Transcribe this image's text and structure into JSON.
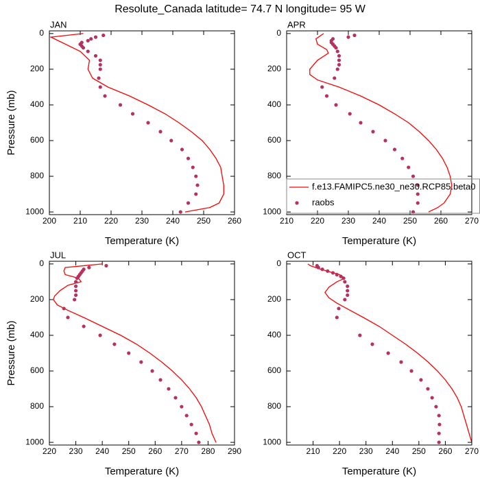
{
  "title": "Resolute_Canada  latitude= 74.7 N longitude= 95 W",
  "chart_data": [
    {
      "type": "line",
      "label": "JAN",
      "xlabel": "Temperature (K)",
      "ylabel": "Pressure (mb)",
      "xlim": [
        200,
        260
      ],
      "xticks": [
        200,
        210,
        220,
        230,
        240,
        250,
        260
      ],
      "ylim": [
        -15,
        1015
      ],
      "y_inverted": true,
      "yticks": [
        0,
        200,
        400,
        600,
        800,
        1000
      ],
      "series": [
        {
          "type": "line",
          "color": "#ff0000",
          "x": [
            211,
            200.5,
            210,
            213,
            212.5,
            214,
            219,
            226,
            232,
            237.5,
            242,
            246,
            249.5,
            252,
            254,
            255.5,
            256,
            256.5,
            256.5,
            255,
            252,
            244
          ],
          "values": [
            0,
            20,
            100,
            150,
            200,
            250,
            300,
            350,
            400,
            450,
            500,
            550,
            600,
            650,
            700,
            750,
            800,
            850,
            900,
            950,
            975,
            1000
          ]
        },
        {
          "type": "scatter",
          "color": "#b5325e",
          "x": [
            217.5,
            215,
            213.5,
            212.5,
            210.5,
            210,
            210.5,
            211,
            212.5,
            215,
            216.5,
            216.5,
            216.5,
            216,
            216.5,
            218,
            223,
            227,
            232,
            236,
            239.5,
            243,
            245,
            246.5,
            247.5,
            248,
            247.5,
            245,
            242.5
          ],
          "values": [
            10,
            20,
            30,
            40,
            50,
            60,
            70,
            80,
            100,
            125,
            150,
            175,
            200,
            250,
            300,
            350,
            400,
            450,
            500,
            550,
            600,
            650,
            700,
            750,
            800,
            850,
            900,
            950,
            1000
          ]
        }
      ]
    },
    {
      "type": "line",
      "label": "APR",
      "xlabel": "Temperature (K)",
      "xlim": [
        210,
        270
      ],
      "xticks": [
        210,
        220,
        230,
        240,
        250,
        260,
        270
      ],
      "ylim": [
        -15,
        1015
      ],
      "y_inverted": true,
      "yticks": [
        0,
        200,
        400,
        600,
        800,
        1000
      ],
      "legend": "lower right",
      "series": [
        {
          "type": "line",
          "name": "f.e13.FAMIPC5.ne30_ne30.RCP85.beta0",
          "color": "#ff0000",
          "x": [
            222,
            219.5,
            220,
            223,
            223.5,
            220,
            217.5,
            217.5,
            220,
            227,
            234,
            240,
            245,
            249.5,
            253,
            256,
            258.5,
            260.5,
            262,
            263,
            263.5,
            263,
            261,
            259,
            256
          ],
          "values": [
            0,
            30,
            60,
            90,
            110,
            150,
            200,
            230,
            260,
            300,
            350,
            400,
            450,
            500,
            550,
            600,
            650,
            700,
            750,
            800,
            850,
            900,
            950,
            975,
            1000
          ]
        },
        {
          "type": "scatter",
          "name": "raobs",
          "color": "#b5325e",
          "x": [
            232,
            230,
            225,
            224.5,
            224.5,
            225,
            225.5,
            226,
            226.5,
            227,
            227,
            227,
            226.5,
            225.5,
            221.5,
            223,
            226,
            230.5,
            234,
            238,
            242,
            245,
            247.5,
            249.5,
            251,
            252.5,
            252.5,
            252.5,
            251
          ],
          "values": [
            10,
            20,
            30,
            40,
            50,
            60,
            70,
            80,
            100,
            125,
            150,
            175,
            200,
            250,
            300,
            350,
            400,
            450,
            500,
            550,
            600,
            650,
            700,
            750,
            800,
            850,
            900,
            950,
            1000
          ]
        }
      ]
    },
    {
      "type": "line",
      "label": "JUL",
      "xlabel": "Temperature (K)",
      "ylabel": "Pressure (mb)",
      "xlim": [
        220,
        290
      ],
      "xticks": [
        220,
        230,
        240,
        250,
        260,
        270,
        280,
        290
      ],
      "ylim": [
        -15,
        1015
      ],
      "y_inverted": true,
      "yticks": [
        0,
        200,
        400,
        600,
        800,
        1000
      ],
      "series": [
        {
          "type": "line",
          "color": "#ff0000",
          "x": [
            240,
            226,
            225.5,
            226,
            231,
            232,
            227,
            224,
            222,
            221.5,
            223,
            227,
            233,
            240,
            247,
            253,
            258,
            262.5,
            266.5,
            270,
            273,
            275.5,
            277.5,
            279,
            280.5,
            281.5,
            283
          ],
          "values": [
            0,
            20,
            40,
            60,
            80,
            100,
            120,
            150,
            180,
            200,
            230,
            260,
            300,
            350,
            400,
            450,
            500,
            550,
            600,
            650,
            700,
            750,
            800,
            850,
            900,
            950,
            1000
          ]
        },
        {
          "type": "scatter",
          "color": "#b5325e",
          "x": [
            241.5,
            235,
            233,
            232.5,
            232,
            231.5,
            231,
            230.5,
            230,
            230,
            230,
            230,
            229.5,
            225.5,
            227,
            233,
            239.2,
            244.6,
            250,
            254.7,
            258.9,
            262,
            265.1,
            267.7,
            270,
            271.9,
            273.7,
            275.5,
            276.5
          ],
          "values": [
            10,
            20,
            30,
            40,
            50,
            60,
            70,
            80,
            100,
            125,
            150,
            175,
            200,
            250,
            300,
            350,
            400,
            450,
            500,
            550,
            600,
            650,
            700,
            750,
            800,
            850,
            900,
            950,
            1000
          ]
        }
      ]
    },
    {
      "type": "line",
      "label": "OCT",
      "xlabel": "Temperature (K)",
      "xlim": [
        200,
        270
      ],
      "xticks": [
        210,
        220,
        230,
        240,
        250,
        260,
        270
      ],
      "ylim": [
        -15,
        1015
      ],
      "y_inverted": true,
      "yticks": [
        0,
        200,
        400,
        600,
        800,
        1000
      ],
      "series": [
        {
          "type": "line",
          "color": "#ff0000",
          "x": [
            208,
            209,
            213,
            220,
            222,
            219,
            216,
            214.5,
            216,
            219,
            224,
            229,
            235,
            240,
            245,
            249.5,
            253.5,
            257,
            260,
            262.5,
            264.5,
            266,
            267,
            268,
            269,
            270
          ],
          "values": [
            0,
            10,
            30,
            60,
            80,
            100,
            130,
            160,
            190,
            220,
            260,
            300,
            350,
            400,
            450,
            500,
            550,
            600,
            650,
            700,
            750,
            800,
            850,
            900,
            950,
            1000
          ]
        },
        {
          "type": "scatter",
          "color": "#b5325e",
          "x": [
            211.5,
            212,
            213.5,
            215.5,
            217.5,
            219,
            220.5,
            221.5,
            222,
            223,
            223,
            223,
            222,
            219.7,
            219,
            227.7,
            232.4,
            238.4,
            243.3,
            247.2,
            250.8,
            253.4,
            255,
            256.5,
            257.6,
            257.8,
            257.6,
            257.6
          ],
          "values": [
            10,
            20,
            30,
            40,
            50,
            60,
            70,
            80,
            100,
            125,
            150,
            175,
            200,
            250,
            300,
            400,
            450,
            500,
            550,
            600,
            650,
            700,
            750,
            800,
            850,
            900,
            950,
            1000
          ]
        }
      ]
    }
  ]
}
